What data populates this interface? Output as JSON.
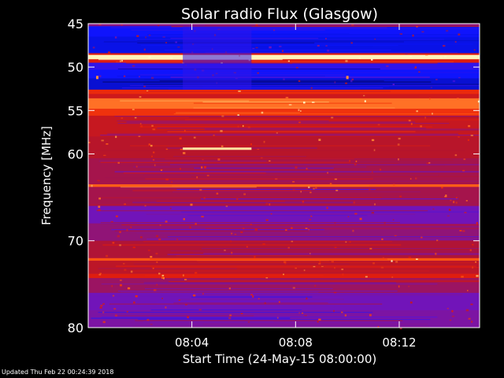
{
  "chart_data": {
    "type": "heatmap",
    "title": "Solar radio Flux (Glasgow)",
    "xlabel": "Start Time (24-May-15 08:00:00)",
    "ylabel": "Frequency [MHz]",
    "xlim_minutes": [
      0,
      15.1
    ],
    "ylim": [
      45,
      80
    ],
    "y_axis_inverted": true,
    "x_ticks": [
      {
        "minute": 4,
        "label": "08:04"
      },
      {
        "minute": 8,
        "label": "08:08"
      },
      {
        "minute": 12,
        "label": "08:12"
      }
    ],
    "y_ticks": [
      {
        "value": 45,
        "label": "45"
      },
      {
        "value": 50,
        "label": "50"
      },
      {
        "value": 55,
        "label": "55"
      },
      {
        "value": 60,
        "label": "60"
      },
      {
        "value": 70,
        "label": "70"
      },
      {
        "value": 80,
        "label": "80"
      }
    ],
    "colormap": [
      "#05056a",
      "#0a14ff",
      "#6a14c8",
      "#b4142d",
      "#e61e0a",
      "#ff5a14",
      "#ffb45a",
      "#ffffc8"
    ],
    "bands": [
      {
        "from": 45.0,
        "to": 45.3,
        "level": 0.35
      },
      {
        "from": 45.3,
        "to": 46.5,
        "level": 0.15
      },
      {
        "from": 46.5,
        "to": 48.4,
        "level": 0.12
      },
      {
        "from": 48.4,
        "to": 48.6,
        "level": 0.55
      },
      {
        "from": 48.6,
        "to": 49.1,
        "level": 0.98
      },
      {
        "from": 49.1,
        "to": 49.5,
        "level": 0.55
      },
      {
        "from": 49.5,
        "to": 50.3,
        "level": 0.2
      },
      {
        "from": 50.3,
        "to": 51.3,
        "level": 0.15
      },
      {
        "from": 51.3,
        "to": 52.6,
        "level": 0.1
      },
      {
        "from": 52.6,
        "to": 53.1,
        "level": 0.6
      },
      {
        "from": 53.1,
        "to": 53.6,
        "level": 0.5
      },
      {
        "from": 53.6,
        "to": 54.8,
        "level": 0.75
      },
      {
        "from": 54.8,
        "to": 55.6,
        "level": 0.62
      },
      {
        "from": 55.6,
        "to": 58.0,
        "level": 0.48
      },
      {
        "from": 58.0,
        "to": 60.5,
        "level": 0.44
      },
      {
        "from": 60.5,
        "to": 63.5,
        "level": 0.4
      },
      {
        "from": 63.5,
        "to": 63.8,
        "level": 0.72
      },
      {
        "from": 63.8,
        "to": 66.0,
        "level": 0.4
      },
      {
        "from": 66.0,
        "to": 68.0,
        "level": 0.3
      },
      {
        "from": 68.0,
        "to": 70.0,
        "level": 0.36
      },
      {
        "from": 70.0,
        "to": 72.0,
        "level": 0.42
      },
      {
        "from": 72.0,
        "to": 72.3,
        "level": 0.7
      },
      {
        "from": 72.3,
        "to": 73.8,
        "level": 0.45
      },
      {
        "from": 73.8,
        "to": 74.3,
        "level": 0.55
      },
      {
        "from": 74.3,
        "to": 76.0,
        "level": 0.38
      },
      {
        "from": 76.0,
        "to": 78.0,
        "level": 0.3
      },
      {
        "from": 78.0,
        "to": 80.0,
        "level": 0.32
      }
    ],
    "features": [
      {
        "type": "line",
        "freq": 59.4,
        "t_start": 3.65,
        "t_end": 6.3,
        "level": 0.95
      },
      {
        "type": "block",
        "freq_from": 45.3,
        "freq_to": 52.6,
        "t_start": 3.65,
        "t_end": 6.3,
        "level": 0.2
      },
      {
        "type": "dot",
        "freq": 51.2,
        "t": 0.35,
        "level": 0.8
      },
      {
        "type": "dot",
        "freq": 51.2,
        "t": 10.0,
        "level": 0.8
      }
    ]
  },
  "footer": "Updated Thu Feb 22 00:24:39 2018"
}
